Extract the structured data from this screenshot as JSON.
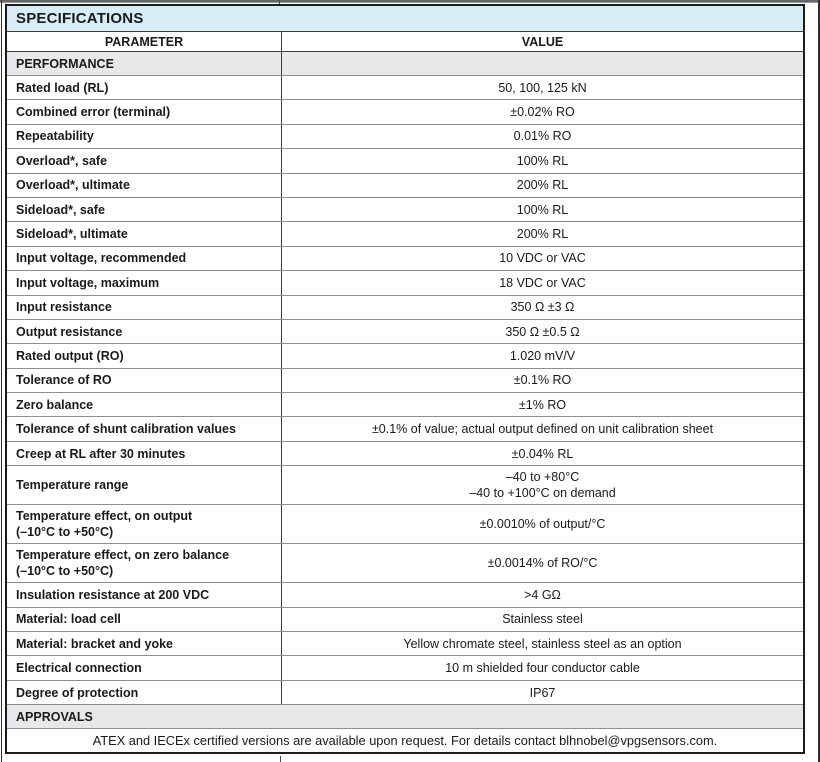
{
  "colors": {
    "title_bg": "#d9edf7",
    "section_bg": "#e8e8ea"
  },
  "table": {
    "title": "SPECIFICATIONS",
    "col_headers": [
      "PARAMETER",
      "VALUE"
    ],
    "entries": [
      {
        "type": "section",
        "label": "PERFORMANCE",
        "divided": true
      },
      {
        "type": "row",
        "param": [
          "Rated load (RL)"
        ],
        "value": [
          "50, 100, 125 kN"
        ]
      },
      {
        "type": "row",
        "param": [
          "Combined error (terminal)"
        ],
        "value": [
          "±0.02% RO"
        ]
      },
      {
        "type": "row",
        "param": [
          "Repeatability"
        ],
        "value": [
          "0.01% RO"
        ]
      },
      {
        "type": "row",
        "param": [
          "Overload*, safe"
        ],
        "value": [
          "100% RL"
        ]
      },
      {
        "type": "row",
        "param": [
          "Overload*, ultimate"
        ],
        "value": [
          "200% RL"
        ]
      },
      {
        "type": "row",
        "param": [
          "Sideload*, safe"
        ],
        "value": [
          "100% RL"
        ]
      },
      {
        "type": "row",
        "param": [
          "Sideload*, ultimate"
        ],
        "value": [
          "200% RL"
        ]
      },
      {
        "type": "row",
        "param": [
          "Input voltage, recommended"
        ],
        "value": [
          "10 VDC or VAC"
        ]
      },
      {
        "type": "row",
        "param": [
          "Input voltage, maximum"
        ],
        "value": [
          "18 VDC or VAC"
        ]
      },
      {
        "type": "row",
        "param": [
          "Input resistance"
        ],
        "value": [
          "350 Ω ±3 Ω"
        ]
      },
      {
        "type": "row",
        "param": [
          "Output resistance"
        ],
        "value": [
          "350 Ω ±0.5 Ω"
        ]
      },
      {
        "type": "row",
        "param": [
          "Rated output (RO)"
        ],
        "value": [
          "1.020 mV/V"
        ]
      },
      {
        "type": "row",
        "param": [
          "Tolerance of RO"
        ],
        "value": [
          "±0.1% RO"
        ]
      },
      {
        "type": "row",
        "param": [
          "Zero balance"
        ],
        "value": [
          "±1% RO"
        ]
      },
      {
        "type": "row",
        "param": [
          "Tolerance of shunt calibration values"
        ],
        "value": [
          "±0.1% of value; actual output defined on unit calibration sheet"
        ]
      },
      {
        "type": "row",
        "param": [
          "Creep at RL after 30 minutes"
        ],
        "value": [
          "±0.04% RL"
        ]
      },
      {
        "type": "row",
        "param": [
          "Temperature range"
        ],
        "value": [
          "–40 to +80°C",
          "–40 to +100°C on demand"
        ]
      },
      {
        "type": "row",
        "param": [
          "Temperature effect, on output",
          "(–10°C to +50°C)"
        ],
        "value": [
          "±0.0010% of output/°C"
        ]
      },
      {
        "type": "row",
        "param": [
          "Temperature effect, on zero balance",
          "(–10°C to +50°C)"
        ],
        "value": [
          "±0.0014% of RO/°C"
        ]
      },
      {
        "type": "row",
        "param": [
          "Insulation resistance at 200 VDC"
        ],
        "value": [
          ">4 GΩ"
        ]
      },
      {
        "type": "row",
        "param": [
          "Material: load cell"
        ],
        "value": [
          "Stainless steel"
        ]
      },
      {
        "type": "row",
        "param": [
          "Material: bracket and yoke"
        ],
        "value": [
          "Yellow chromate steel, stainless steel as an option"
        ]
      },
      {
        "type": "row",
        "param": [
          "Electrical connection"
        ],
        "value": [
          "10 m shielded four conductor cable"
        ]
      },
      {
        "type": "row",
        "param": [
          "Degree of protection"
        ],
        "value": [
          "IP67"
        ]
      },
      {
        "type": "section",
        "label": "APPROVALS",
        "divided": false
      },
      {
        "type": "note",
        "text": "ATEX and IECEx certified versions are available upon request. For details contact blhnobel@vpgsensors.com."
      }
    ]
  }
}
